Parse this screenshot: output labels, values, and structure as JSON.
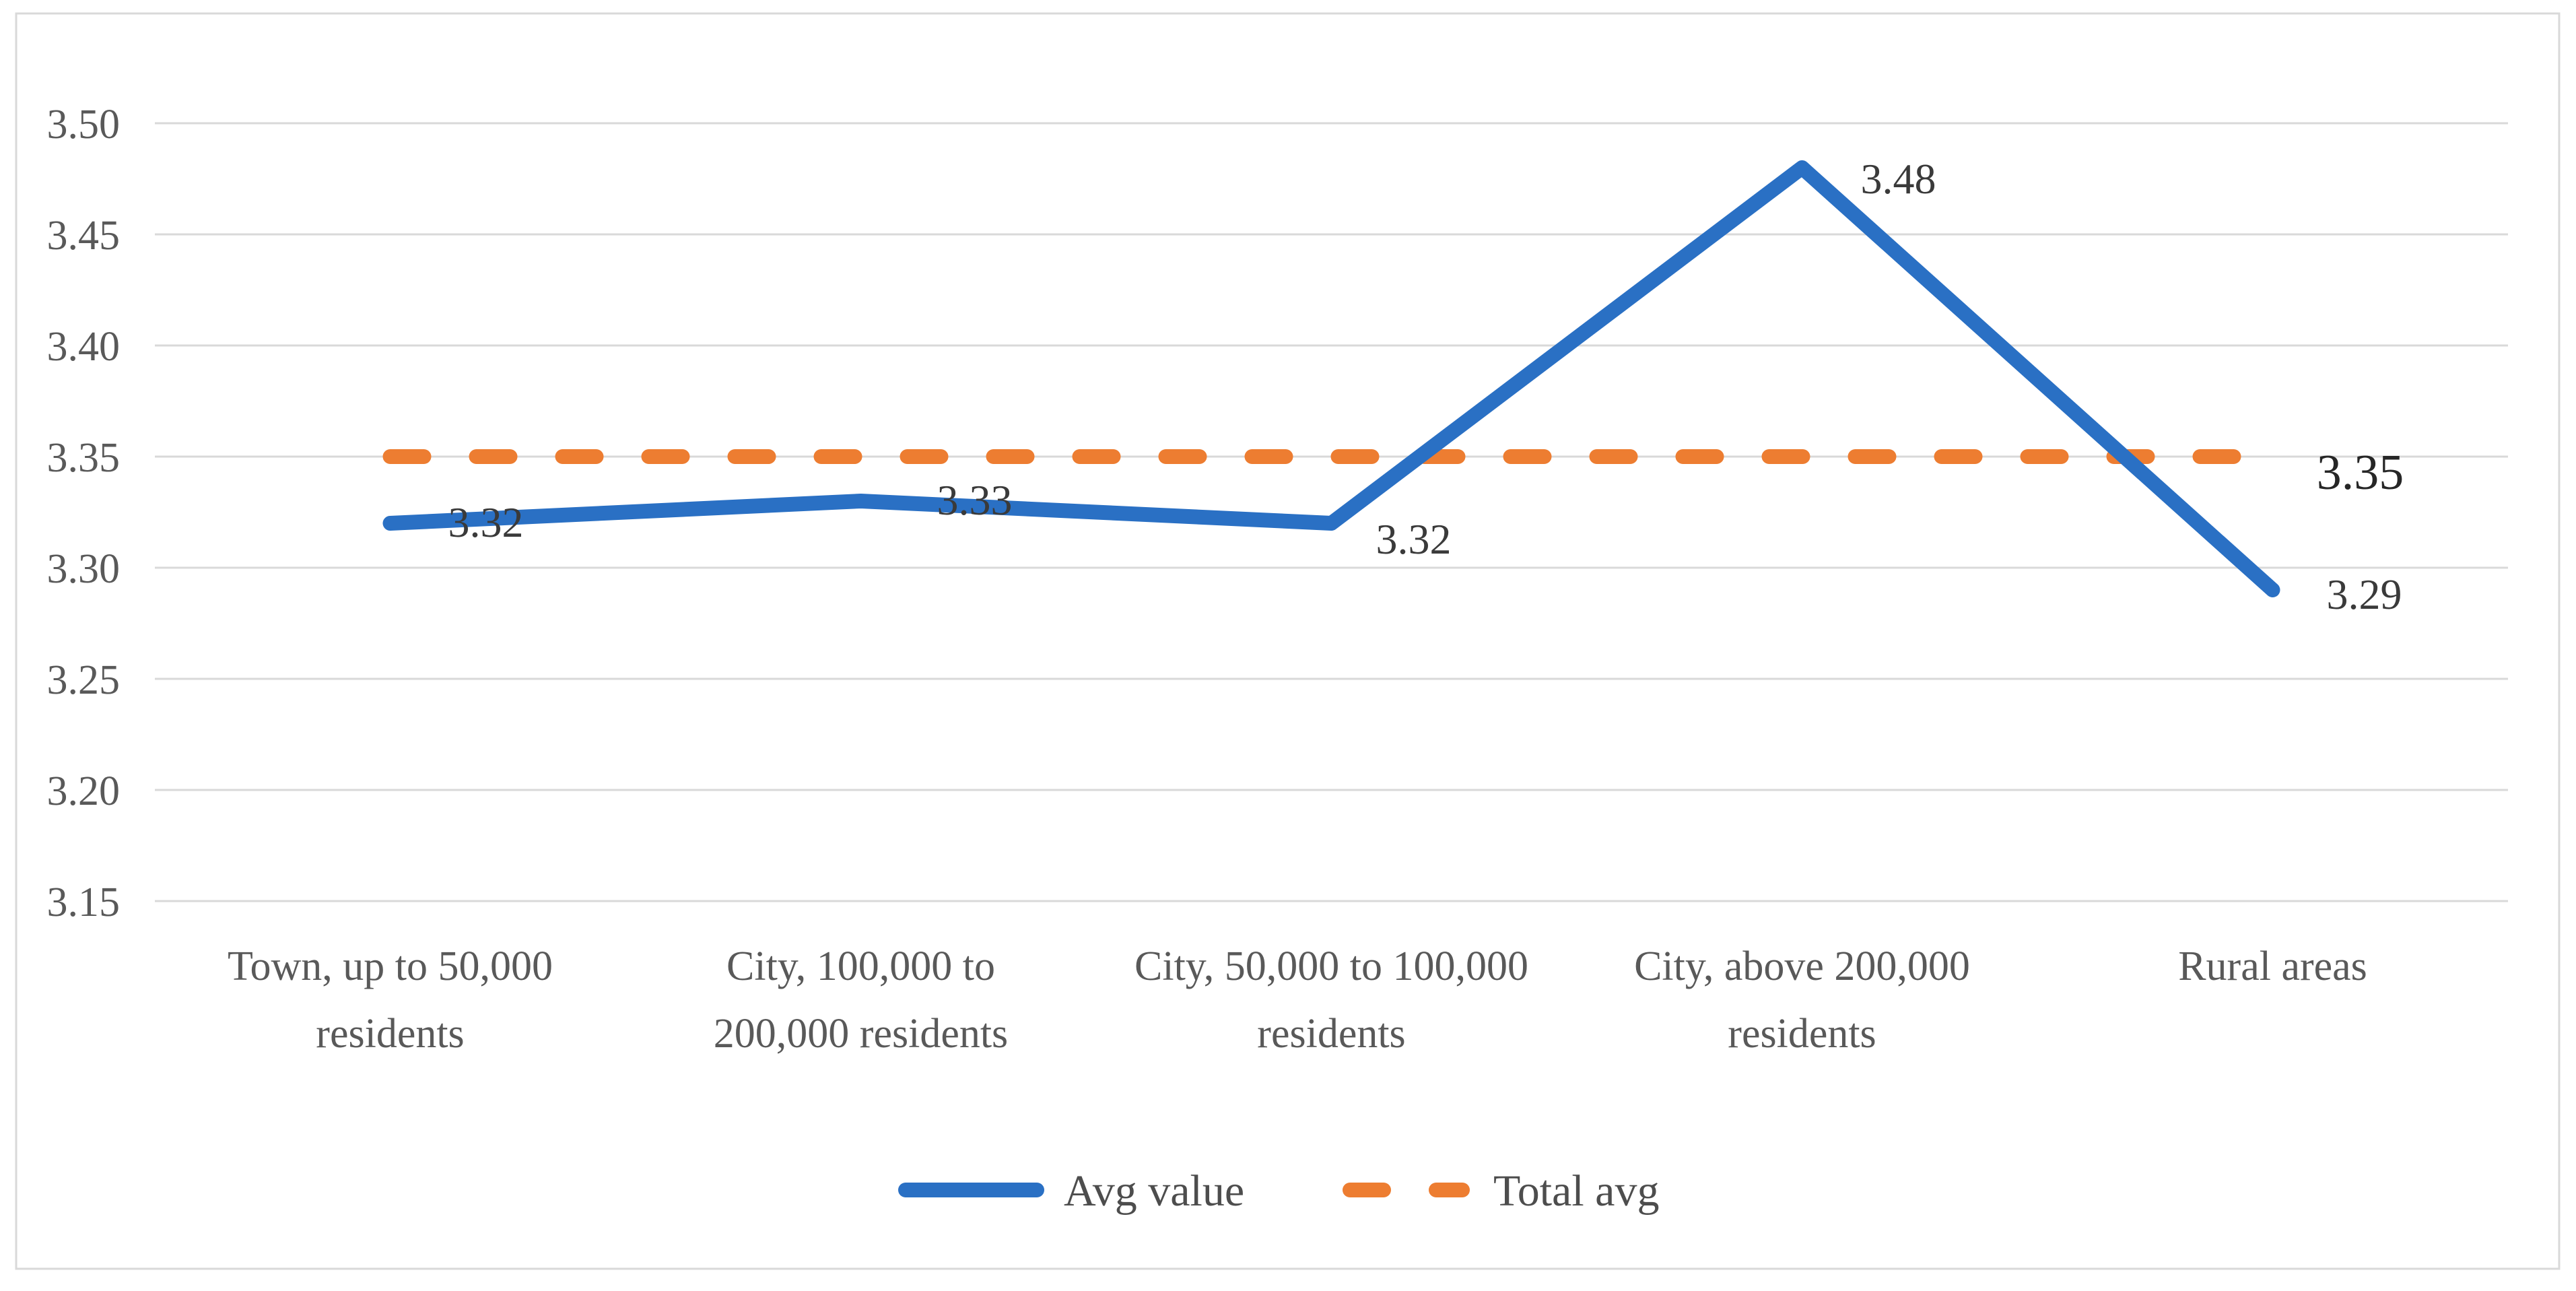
{
  "chart_data": {
    "type": "line",
    "title": "",
    "xlabel": "",
    "ylabel": "",
    "categories": [
      "Town, up to 50,000 residents",
      "City, 100,000 to 200,000 residents",
      "City, 50,000 to 100,000 residents",
      "City, above 200,000 residents",
      "Rural areas"
    ],
    "category_label_lines": [
      [
        "Town, up to 50,000",
        "residents"
      ],
      [
        "City, 100,000 to",
        "200,000 residents"
      ],
      [
        "City, 50,000 to 100,000",
        "residents"
      ],
      [
        "City, above 200,000",
        "residents"
      ],
      [
        "Rural areas"
      ]
    ],
    "series": [
      {
        "name": "Avg value",
        "style": "solid",
        "color": "#2A70C4",
        "values": [
          3.32,
          3.33,
          3.32,
          3.48,
          3.29
        ],
        "data_labels": [
          "3.32",
          "3.33",
          "3.32",
          "3.48",
          "3.29"
        ]
      },
      {
        "name": "Total avg",
        "style": "dashed",
        "color": "#ED7D31",
        "constant_value": 3.35,
        "data_label": "3.35"
      }
    ],
    "ylim": [
      3.15,
      3.5
    ],
    "ytick_step": 0.05,
    "ytick_labels": [
      "3.50",
      "3.45",
      "3.40",
      "3.35",
      "3.30",
      "3.25",
      "3.20",
      "3.15"
    ],
    "grid": "horizontal",
    "legend_position": "bottom"
  },
  "legend": {
    "items": [
      {
        "label": "Avg value",
        "swatch": "solid-line-icon",
        "color": "#2A70C4"
      },
      {
        "label": "Total avg",
        "swatch": "dashed-line-icon",
        "color": "#ED7D31"
      }
    ]
  },
  "colors": {
    "background": "#FFFFFF",
    "gridline": "#D9D9D9",
    "chart_border": "#D9D9D9",
    "axis_text": "#595959",
    "category_text": "#595959",
    "data_label_text": "#3A3A3A",
    "total_label_text": "#262626",
    "legend_text": "#4D4D4D"
  }
}
